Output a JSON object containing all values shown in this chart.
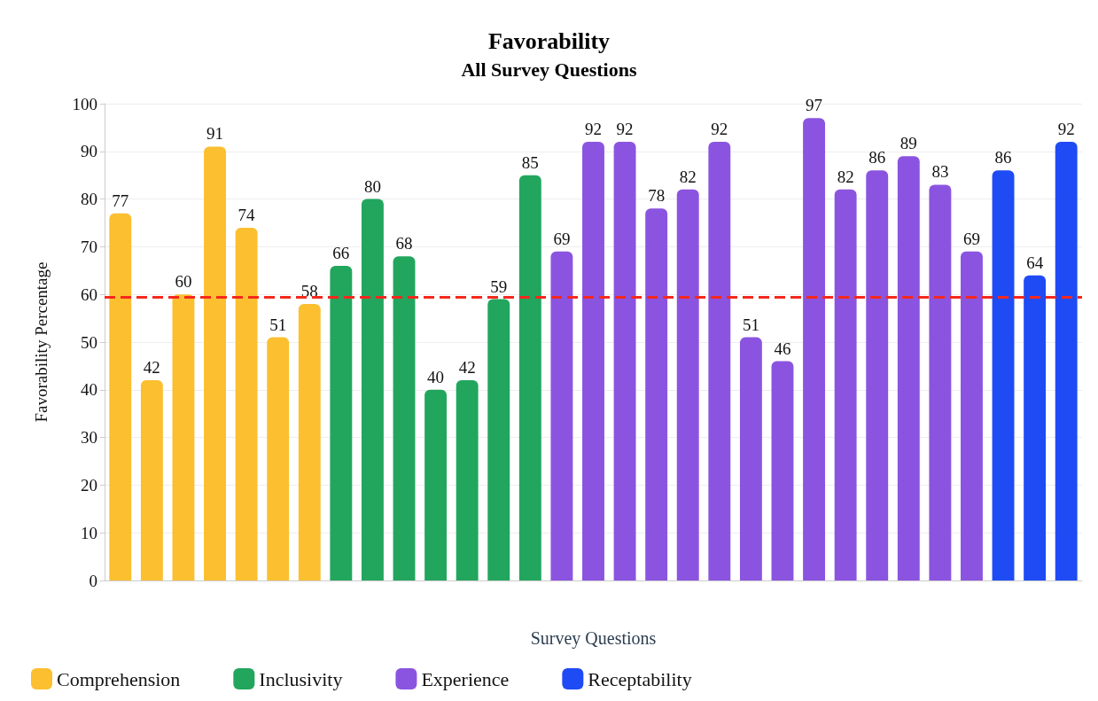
{
  "chart_data": {
    "type": "bar",
    "title": "Favorability",
    "subtitle": "All Survey Questions",
    "xlabel": "Survey Questions",
    "ylabel": "Favorability Percentage",
    "categories": [
      null,
      null,
      null,
      null,
      null,
      null,
      null,
      null,
      null,
      null,
      null,
      null,
      null,
      null,
      null,
      null,
      null,
      null,
      null,
      null,
      null,
      null,
      null,
      null,
      null,
      null,
      null,
      null,
      null,
      null,
      null
    ],
    "series": [
      {
        "name": "Comprehension",
        "color": "#fbbf2f",
        "values": [
          77,
          42,
          60,
          91,
          74,
          51,
          58,
          null,
          null,
          null,
          null,
          null,
          null,
          null,
          null,
          null,
          null,
          null,
          null,
          null,
          null,
          null,
          null,
          null,
          null,
          null,
          null,
          null,
          null,
          null,
          null
        ]
      },
      {
        "name": "Inclusivity",
        "color": "#22a65e",
        "values": [
          null,
          null,
          null,
          null,
          null,
          null,
          null,
          66,
          80,
          68,
          40,
          42,
          59,
          85,
          null,
          null,
          null,
          null,
          null,
          null,
          null,
          null,
          null,
          null,
          null,
          null,
          null,
          null,
          null,
          null,
          null
        ]
      },
      {
        "name": "Experience",
        "color": "#8b54e0",
        "values": [
          null,
          null,
          null,
          null,
          null,
          null,
          null,
          null,
          null,
          null,
          null,
          null,
          null,
          null,
          69,
          92,
          92,
          78,
          82,
          92,
          51,
          46,
          97,
          82,
          86,
          89,
          83,
          69,
          null,
          null,
          null
        ]
      },
      {
        "name": "Receptability",
        "color": "#1f4bf5",
        "values": [
          null,
          null,
          null,
          null,
          null,
          null,
          null,
          null,
          null,
          null,
          null,
          null,
          null,
          null,
          null,
          null,
          null,
          null,
          null,
          null,
          null,
          null,
          null,
          null,
          null,
          null,
          null,
          null,
          86,
          64,
          92
        ]
      }
    ],
    "ylim": [
      0,
      100
    ],
    "yticks": [
      0,
      10,
      20,
      30,
      40,
      50,
      60,
      70,
      80,
      90,
      100
    ],
    "ref_lines": [
      {
        "axis": "y",
        "value": 59.5,
        "color": "#f5281e",
        "line_style": "dashed"
      }
    ],
    "data_labels": true,
    "grid": "y",
    "legend": "bottom left"
  }
}
